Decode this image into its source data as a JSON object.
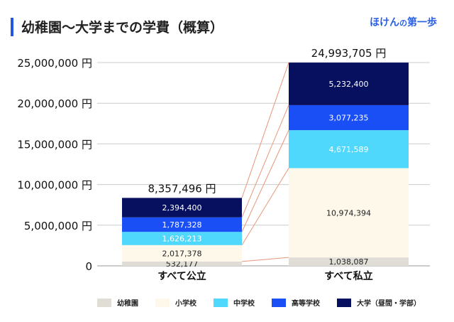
{
  "header": {
    "title": "幼稚園〜大学までの学費（概算）",
    "brand_main": "ほけん",
    "brand_no": "の",
    "brand_end": "第一歩"
  },
  "chart_data": {
    "type": "bar",
    "stacked": true,
    "title": "幼稚園〜大学までの学費（概算）",
    "categories": [
      "すべて公立",
      "すべて私立"
    ],
    "series": [
      {
        "name": "幼稚園",
        "color": "#e0ddd6",
        "values": [
          532177,
          1038087
        ]
      },
      {
        "name": "小学校",
        "color": "#fdf8ea",
        "values": [
          2017378,
          10974394
        ]
      },
      {
        "name": "中学校",
        "color": "#4fd8fb",
        "values": [
          1626213,
          4671589
        ]
      },
      {
        "name": "高等学校",
        "color": "#1a4ff5",
        "values": [
          1787328,
          3077235
        ]
      },
      {
        "name": "大学（昼間・学部）",
        "color": "#07105e",
        "values": [
          2394400,
          5232400
        ]
      }
    ],
    "value_labels": [
      [
        "532,177",
        "2,017,378",
        "1,626,213",
        "1,787,328",
        "2,394,400"
      ],
      [
        "1,038,087",
        "10,974,394",
        "4,671,589",
        "3,077,235",
        "5,232,400"
      ]
    ],
    "totals": [
      "8,357,496 円",
      "24,993,705 円"
    ],
    "yticks": [
      "0",
      "5,000,000 円",
      "10,000,000 円",
      "15,000,000 円",
      "20,000,000 円",
      "25,000,000 円"
    ],
    "ylim": [
      0,
      25000000
    ],
    "grid": true,
    "connector_color": "#e8967a",
    "legend_position": "bottom"
  }
}
